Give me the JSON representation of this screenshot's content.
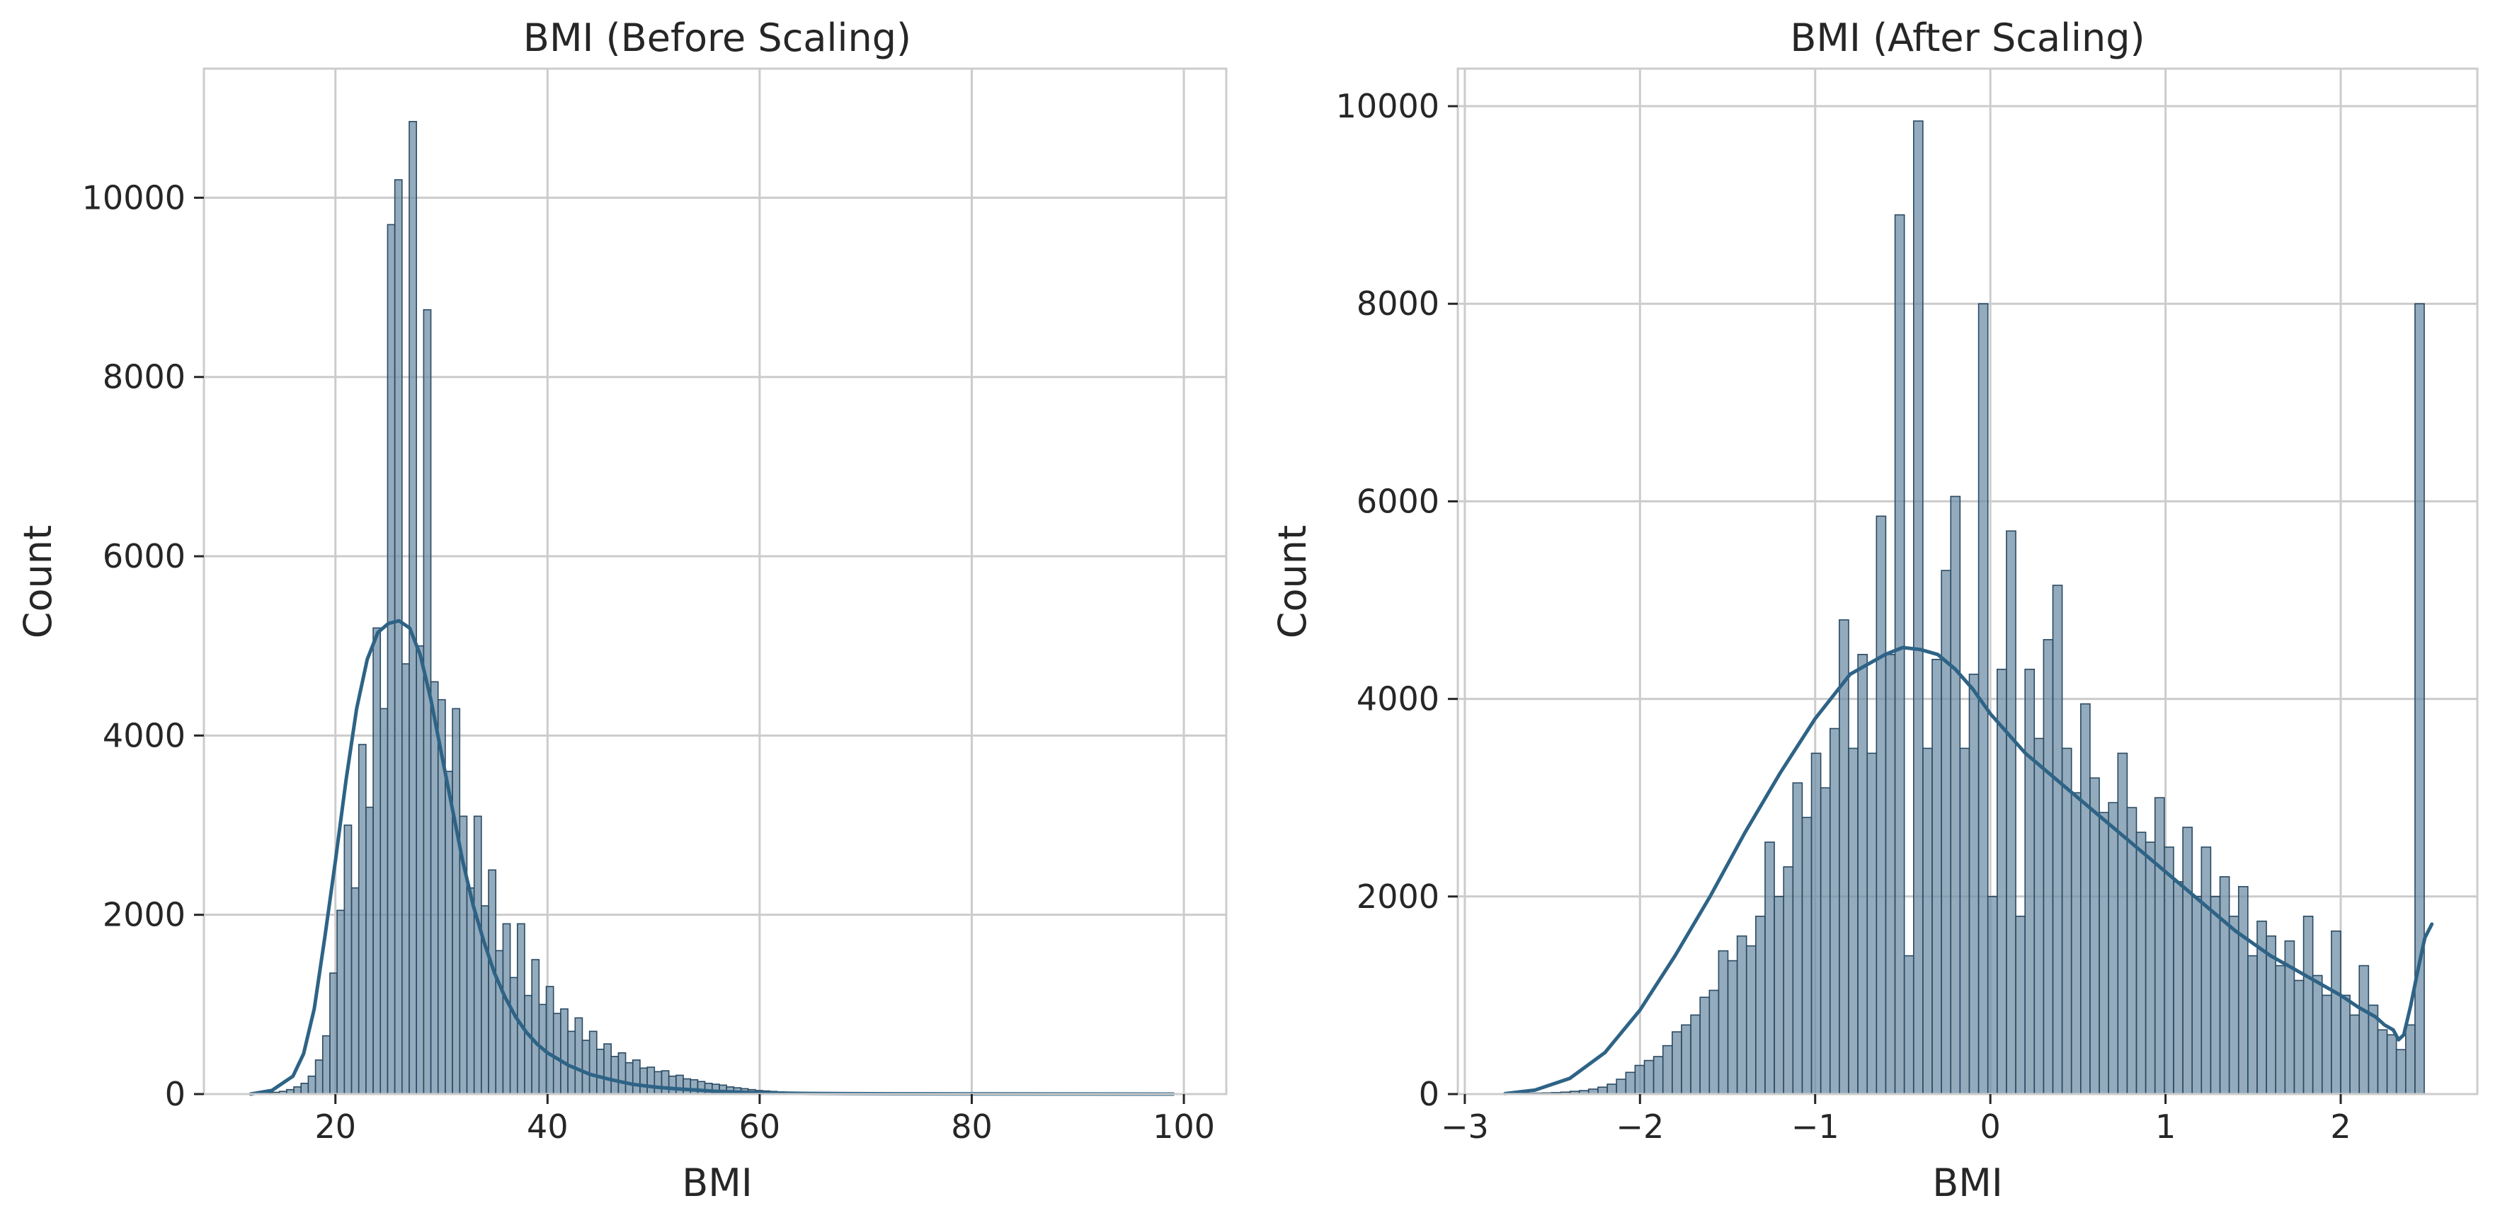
{
  "chart_data": [
    {
      "type": "histogram",
      "title": "BMI (Before Scaling)",
      "xlabel": "BMI",
      "ylabel": "Count",
      "xlim": [
        7.6,
        104.0
      ],
      "ylim": [
        0,
        11440
      ],
      "xticks": [
        20,
        40,
        60,
        80,
        100
      ],
      "yticks": [
        0,
        2000,
        4000,
        6000,
        8000,
        10000
      ],
      "grid": true,
      "kde": true,
      "bin_width": 0.68,
      "bins": [
        [
          12.0,
          10
        ],
        [
          12.68,
          10
        ],
        [
          13.36,
          15
        ],
        [
          14.04,
          20
        ],
        [
          14.72,
          30
        ],
        [
          15.4,
          50
        ],
        [
          16.08,
          80
        ],
        [
          16.76,
          120
        ],
        [
          17.44,
          200
        ],
        [
          18.12,
          380
        ],
        [
          18.8,
          650
        ],
        [
          19.48,
          1350
        ],
        [
          20.16,
          2050
        ],
        [
          20.84,
          3000
        ],
        [
          21.52,
          2300
        ],
        [
          22.2,
          3900
        ],
        [
          22.88,
          3200
        ],
        [
          23.56,
          5200
        ],
        [
          24.24,
          4300
        ],
        [
          24.92,
          9700
        ],
        [
          25.6,
          10200
        ],
        [
          26.28,
          4800
        ],
        [
          26.96,
          10850
        ],
        [
          27.64,
          5000
        ],
        [
          28.32,
          8750
        ],
        [
          29.0,
          4600
        ],
        [
          29.68,
          4400
        ],
        [
          30.36,
          3600
        ],
        [
          31.04,
          4300
        ],
        [
          31.72,
          3100
        ],
        [
          32.4,
          2300
        ],
        [
          33.08,
          3100
        ],
        [
          33.76,
          2100
        ],
        [
          34.44,
          2500
        ],
        [
          35.12,
          1600
        ],
        [
          35.8,
          1900
        ],
        [
          36.48,
          1300
        ],
        [
          37.16,
          1900
        ],
        [
          37.84,
          1100
        ],
        [
          38.52,
          1500
        ],
        [
          39.2,
          1000
        ],
        [
          39.88,
          1200
        ],
        [
          40.56,
          900
        ],
        [
          41.24,
          950
        ],
        [
          41.92,
          700
        ],
        [
          42.6,
          850
        ],
        [
          43.28,
          600
        ],
        [
          43.96,
          700
        ],
        [
          44.64,
          500
        ],
        [
          45.32,
          560
        ],
        [
          46.0,
          420
        ],
        [
          46.68,
          460
        ],
        [
          47.36,
          350
        ],
        [
          48.04,
          380
        ],
        [
          48.72,
          290
        ],
        [
          49.4,
          300
        ],
        [
          50.08,
          250
        ],
        [
          50.76,
          260
        ],
        [
          51.44,
          200
        ],
        [
          52.12,
          210
        ],
        [
          52.8,
          170
        ],
        [
          53.48,
          160
        ],
        [
          54.16,
          140
        ],
        [
          54.84,
          120
        ],
        [
          55.52,
          110
        ],
        [
          56.2,
          100
        ],
        [
          56.88,
          80
        ],
        [
          57.56,
          70
        ],
        [
          58.24,
          60
        ],
        [
          58.92,
          50
        ],
        [
          59.6,
          40
        ],
        [
          60.28,
          35
        ],
        [
          60.96,
          30
        ],
        [
          61.64,
          25
        ],
        [
          62.32,
          20
        ],
        [
          63.0,
          20
        ],
        [
          63.68,
          15
        ],
        [
          64.36,
          12
        ],
        [
          65.04,
          10
        ],
        [
          65.72,
          10
        ],
        [
          66.4,
          8
        ],
        [
          67.08,
          8
        ],
        [
          67.76,
          6
        ],
        [
          68.44,
          6
        ],
        [
          69.12,
          5
        ],
        [
          69.8,
          5
        ],
        [
          70.48,
          4
        ],
        [
          71.16,
          4
        ],
        [
          71.84,
          3
        ],
        [
          72.52,
          3
        ],
        [
          73.2,
          3
        ],
        [
          73.88,
          3
        ],
        [
          74.56,
          2
        ],
        [
          75.24,
          2
        ],
        [
          75.92,
          2
        ],
        [
          76.6,
          2
        ],
        [
          77.28,
          2
        ],
        [
          77.96,
          2
        ],
        [
          78.64,
          2
        ],
        [
          79.32,
          2
        ],
        [
          80.0,
          1
        ],
        [
          80.68,
          1
        ],
        [
          81.36,
          1
        ],
        [
          82.04,
          1
        ],
        [
          82.72,
          1
        ],
        [
          83.4,
          1
        ],
        [
          84.08,
          1
        ],
        [
          84.76,
          1
        ],
        [
          85.44,
          1
        ],
        [
          86.12,
          1
        ],
        [
          86.8,
          1
        ],
        [
          87.48,
          1
        ],
        [
          88.16,
          1
        ],
        [
          88.84,
          1
        ],
        [
          89.52,
          1
        ],
        [
          90.2,
          1
        ],
        [
          90.88,
          1
        ],
        [
          91.56,
          1
        ],
        [
          92.24,
          1
        ],
        [
          92.92,
          1
        ],
        [
          93.6,
          1
        ],
        [
          94.28,
          1
        ],
        [
          94.96,
          1
        ],
        [
          95.64,
          1
        ],
        [
          96.32,
          1
        ],
        [
          97.0,
          1
        ],
        [
          97.68,
          1
        ],
        [
          98.36,
          1
        ],
        [
          99.04,
          1
        ]
      ],
      "kde_points": [
        [
          12,
          0
        ],
        [
          14,
          40
        ],
        [
          16,
          200
        ],
        [
          17,
          450
        ],
        [
          18,
          950
        ],
        [
          19,
          1750
        ],
        [
          20,
          2600
        ],
        [
          21,
          3500
        ],
        [
          22,
          4300
        ],
        [
          23,
          4850
        ],
        [
          24,
          5150
        ],
        [
          25,
          5250
        ],
        [
          26,
          5280
        ],
        [
          27,
          5200
        ],
        [
          28,
          4900
        ],
        [
          29,
          4400
        ],
        [
          30,
          3800
        ],
        [
          31,
          3200
        ],
        [
          32,
          2600
        ],
        [
          33,
          2100
        ],
        [
          34,
          1700
        ],
        [
          35,
          1350
        ],
        [
          36,
          1080
        ],
        [
          37,
          860
        ],
        [
          38,
          690
        ],
        [
          39,
          560
        ],
        [
          40,
          460
        ],
        [
          42,
          320
        ],
        [
          44,
          220
        ],
        [
          46,
          160
        ],
        [
          48,
          110
        ],
        [
          50,
          80
        ],
        [
          52,
          60
        ],
        [
          54,
          45
        ],
        [
          56,
          30
        ],
        [
          58,
          22
        ],
        [
          60,
          15
        ],
        [
          64,
          8
        ],
        [
          68,
          5
        ],
        [
          74,
          3
        ],
        [
          80,
          2
        ],
        [
          90,
          1
        ],
        [
          99,
          0
        ]
      ]
    },
    {
      "type": "histogram",
      "title": "BMI (After Scaling)",
      "xlabel": "BMI",
      "ylabel": "Count",
      "xlim": [
        -3.04,
        2.78
      ],
      "ylim": [
        0,
        10380
      ],
      "xticks": [
        -3,
        -2,
        -1,
        0,
        1,
        2
      ],
      "xtick_labels": [
        "−3",
        "−2",
        "−1",
        "0",
        "1",
        "2"
      ],
      "yticks": [
        0,
        2000,
        4000,
        6000,
        8000,
        10000
      ],
      "grid": true,
      "kde": true,
      "bin_width": 0.0529,
      "bins": [
        [
          -2.77,
          5
        ],
        [
          -2.717,
          5
        ],
        [
          -2.664,
          8
        ],
        [
          -2.611,
          10
        ],
        [
          -2.558,
          12
        ],
        [
          -2.505,
          15
        ],
        [
          -2.452,
          20
        ],
        [
          -2.399,
          28
        ],
        [
          -2.346,
          35
        ],
        [
          -2.293,
          50
        ],
        [
          -2.24,
          70
        ],
        [
          -2.187,
          100
        ],
        [
          -2.134,
          150
        ],
        [
          -2.081,
          220
        ],
        [
          -2.028,
          290
        ],
        [
          -1.975,
          340
        ],
        [
          -1.922,
          380
        ],
        [
          -1.869,
          490
        ],
        [
          -1.816,
          630
        ],
        [
          -1.763,
          700
        ],
        [
          -1.71,
          800
        ],
        [
          -1.657,
          980
        ],
        [
          -1.604,
          1050
        ],
        [
          -1.551,
          1450
        ],
        [
          -1.498,
          1350
        ],
        [
          -1.445,
          1600
        ],
        [
          -1.392,
          1500
        ],
        [
          -1.339,
          1800
        ],
        [
          -1.286,
          2550
        ],
        [
          -1.233,
          2000
        ],
        [
          -1.18,
          2300
        ],
        [
          -1.127,
          3150
        ],
        [
          -1.074,
          2800
        ],
        [
          -1.021,
          3450
        ],
        [
          -0.968,
          3100
        ],
        [
          -0.915,
          3700
        ],
        [
          -0.862,
          4800
        ],
        [
          -0.809,
          3500
        ],
        [
          -0.756,
          4450
        ],
        [
          -0.703,
          3450
        ],
        [
          -0.65,
          5850
        ],
        [
          -0.597,
          4450
        ],
        [
          -0.544,
          8900
        ],
        [
          -0.491,
          1400
        ],
        [
          -0.438,
          9850
        ],
        [
          -0.385,
          3500
        ],
        [
          -0.332,
          4400
        ],
        [
          -0.279,
          5300
        ],
        [
          -0.226,
          6050
        ],
        [
          -0.173,
          3500
        ],
        [
          -0.12,
          4250
        ],
        [
          -0.067,
          8000
        ],
        [
          -0.014,
          2000
        ],
        [
          0.039,
          4300
        ],
        [
          0.092,
          5700
        ],
        [
          0.145,
          1800
        ],
        [
          0.198,
          4300
        ],
        [
          0.251,
          3600
        ],
        [
          0.304,
          4600
        ],
        [
          0.357,
          5150
        ],
        [
          0.41,
          3500
        ],
        [
          0.463,
          3050
        ],
        [
          0.516,
          3950
        ],
        [
          0.569,
          3200
        ],
        [
          0.622,
          2850
        ],
        [
          0.675,
          2950
        ],
        [
          0.728,
          3450
        ],
        [
          0.781,
          2900
        ],
        [
          0.834,
          2650
        ],
        [
          0.887,
          2550
        ],
        [
          0.94,
          3000
        ],
        [
          0.993,
          2500
        ],
        [
          1.046,
          2150
        ],
        [
          1.099,
          2700
        ],
        [
          1.152,
          2000
        ],
        [
          1.205,
          2500
        ],
        [
          1.258,
          2000
        ],
        [
          1.311,
          2200
        ],
        [
          1.364,
          1800
        ],
        [
          1.417,
          2100
        ],
        [
          1.47,
          1400
        ],
        [
          1.523,
          1750
        ],
        [
          1.576,
          1600
        ],
        [
          1.629,
          1300
        ],
        [
          1.682,
          1550
        ],
        [
          1.735,
          1150
        ],
        [
          1.788,
          1800
        ],
        [
          1.841,
          1200
        ],
        [
          1.894,
          1000
        ],
        [
          1.947,
          1650
        ],
        [
          2.0,
          1000
        ],
        [
          2.053,
          800
        ],
        [
          2.106,
          1300
        ],
        [
          2.159,
          900
        ],
        [
          2.212,
          650
        ],
        [
          2.265,
          600
        ],
        [
          2.318,
          450
        ],
        [
          2.371,
          700
        ],
        [
          2.424,
          8000
        ]
      ],
      "kde_points": [
        [
          -2.77,
          5
        ],
        [
          -2.6,
          40
        ],
        [
          -2.4,
          160
        ],
        [
          -2.2,
          420
        ],
        [
          -2.0,
          850
        ],
        [
          -1.8,
          1400
        ],
        [
          -1.6,
          2000
        ],
        [
          -1.4,
          2650
        ],
        [
          -1.2,
          3250
        ],
        [
          -1.0,
          3800
        ],
        [
          -0.8,
          4250
        ],
        [
          -0.6,
          4450
        ],
        [
          -0.5,
          4520
        ],
        [
          -0.4,
          4500
        ],
        [
          -0.3,
          4450
        ],
        [
          -0.2,
          4300
        ],
        [
          -0.1,
          4100
        ],
        [
          0.0,
          3850
        ],
        [
          0.2,
          3450
        ],
        [
          0.4,
          3150
        ],
        [
          0.6,
          2850
        ],
        [
          0.8,
          2550
        ],
        [
          1.0,
          2250
        ],
        [
          1.2,
          1950
        ],
        [
          1.4,
          1650
        ],
        [
          1.6,
          1400
        ],
        [
          1.8,
          1200
        ],
        [
          2.0,
          1000
        ],
        [
          2.1,
          880
        ],
        [
          2.2,
          780
        ],
        [
          2.25,
          700
        ],
        [
          2.3,
          650
        ],
        [
          2.33,
          550
        ],
        [
          2.36,
          600
        ],
        [
          2.4,
          900
        ],
        [
          2.44,
          1250
        ],
        [
          2.48,
          1580
        ],
        [
          2.52,
          1720
        ]
      ]
    }
  ],
  "style": {
    "bar_fill": "#6f8fa6",
    "bar_edge": "#2a4a63",
    "kde_color": "#2e6386",
    "grid_color": "#cccccc",
    "spine_color": "#cccccc"
  }
}
